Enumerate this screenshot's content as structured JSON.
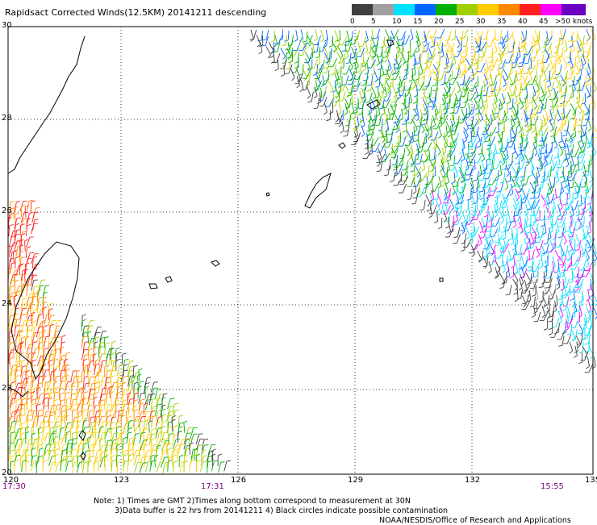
{
  "title": "Rapidsact Corrected Winds(12.5KM) 20141211 descending",
  "legend": {
    "labels": [
      "0",
      "5",
      "10",
      "15",
      "20",
      "25",
      "30",
      "35",
      "40",
      "45",
      ">50 knots"
    ],
    "colors": [
      "#404040",
      "#a0a0a0",
      "#00e0ff",
      "#0066ff",
      "#00b000",
      "#a0d000",
      "#ffcc00",
      "#ff8800",
      "#ff2020",
      "#ff00ff",
      "#6a00c0"
    ]
  },
  "lat_labels": [
    "30",
    "28",
    "26",
    "24",
    "22",
    "20"
  ],
  "lon_labels": [
    "120",
    "123",
    "126",
    "129",
    "132",
    "135"
  ],
  "times": {
    "left": "17:30",
    "middle": "17:31",
    "right": "15:55",
    "color": "#7a007a"
  },
  "notes": {
    "line1": "Note: 1) Times are GMT 2)Times along bottom correspond to measurement at 30N",
    "line2": "3)Data buffer is 22 hrs from 20141211 4) Black circles indicate possible contamination",
    "line3": "NOAA/NESDIS/Office of Research and Applications"
  }
}
